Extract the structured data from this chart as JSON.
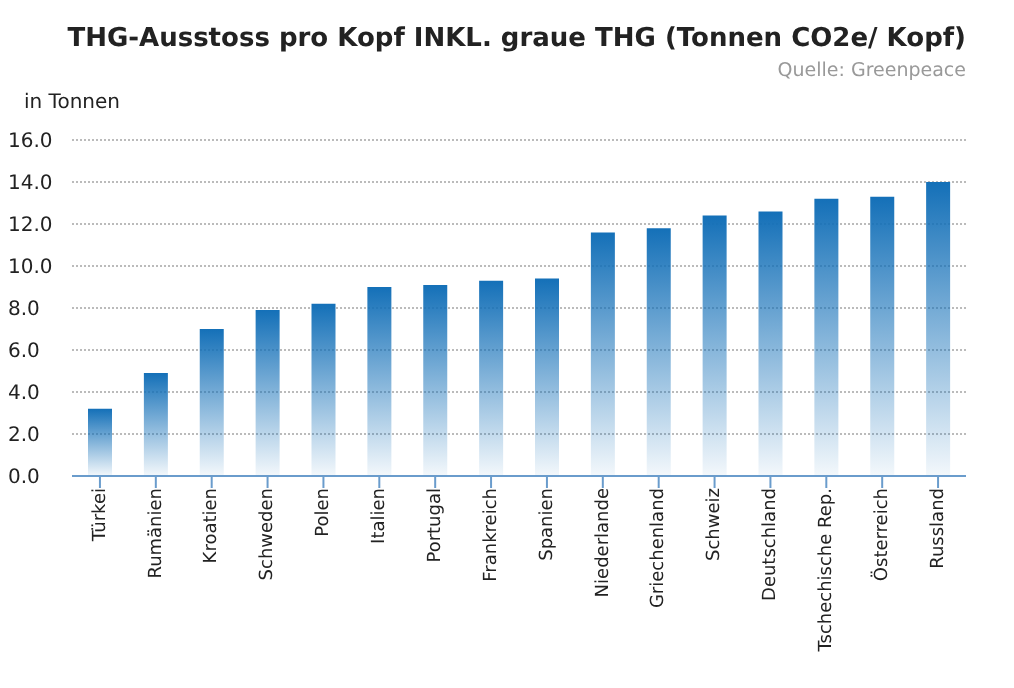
{
  "chart_data": {
    "type": "bar",
    "title": "THG-Ausstoss pro Kopf INKL. graue THG (Tonnen CO2e/ Kopf)",
    "annotations": [
      "Quelle: Greenpeace"
    ],
    "ylabel": "in Tonnen",
    "categories": [
      "Türkei",
      "Rumänien",
      "Kroatien",
      "Schweden",
      "Polen",
      "Italien",
      "Portugal",
      "Frankreich",
      "Spanien",
      "Niederlande",
      "Griechenland",
      "Schweiz",
      "Deutschland",
      "Tschechische Rep.",
      "Österreich",
      "Russland"
    ],
    "values": [
      3.2,
      4.9,
      7.0,
      7.9,
      8.2,
      9.0,
      9.1,
      9.3,
      9.4,
      11.6,
      11.8,
      12.4,
      12.6,
      13.2,
      13.3,
      14.0
    ],
    "color": "#1470b8",
    "ylim": [
      0,
      16
    ],
    "yticks": [
      {
        "value": 0,
        "label": "0.0"
      },
      {
        "value": 2,
        "label": "2.0"
      },
      {
        "value": 4,
        "label": "4.0"
      },
      {
        "value": 6,
        "label": "6.0"
      },
      {
        "value": 8,
        "label": "8.0"
      },
      {
        "value": 10,
        "label": "10.0"
      },
      {
        "value": 12,
        "label": "12.0"
      },
      {
        "value": 14,
        "label": "14.0"
      },
      {
        "value": 16,
        "label": "16.0"
      }
    ],
    "grid": "y"
  }
}
